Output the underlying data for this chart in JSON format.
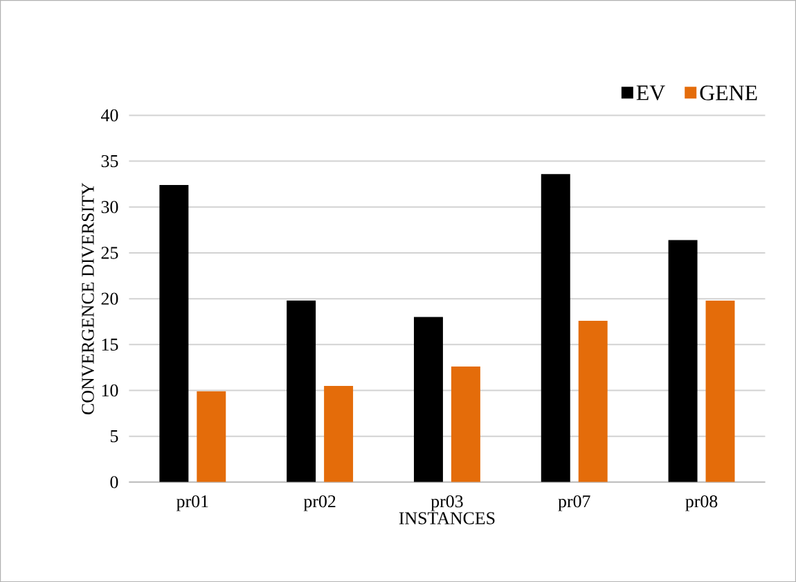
{
  "chart_data": {
    "type": "bar",
    "xlabel": "INSTANCES",
    "ylabel": "CONVERGENCE DIVERSITY",
    "categories": [
      "pr01",
      "pr02",
      "pr03",
      "pr07",
      "pr08"
    ],
    "series": [
      {
        "name": "EV",
        "color": "#000000",
        "values": [
          32.4,
          19.8,
          18.0,
          33.6,
          26.4
        ]
      },
      {
        "name": "GENE",
        "color": "#e46c0a",
        "values": [
          9.9,
          10.5,
          12.6,
          17.6,
          19.8
        ]
      }
    ],
    "ylim": [
      0,
      40
    ],
    "yticks": [
      0,
      5,
      10,
      15,
      20,
      25,
      30,
      35,
      40
    ],
    "grid": "y",
    "legend": "top right"
  }
}
